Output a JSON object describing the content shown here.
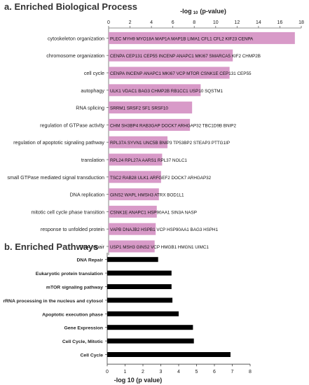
{
  "chart_data": [
    {
      "panel_label": "a.",
      "title": "Enriched Biological Process",
      "type": "bar",
      "orientation": "horizontal",
      "axis_title_main": "-log",
      "axis_title_sub": "10",
      "axis_title_rest": "(p-value)",
      "xlim": [
        0,
        18
      ],
      "xticks": [
        "0",
        "2",
        "4",
        "6",
        "8",
        "10",
        "12",
        "14",
        "16",
        "18"
      ],
      "bar_color": "#d89ac8",
      "categories": [
        "cytoskeleton organization",
        "chromosome organization",
        "cell cycle",
        "autophagy",
        "RNA splicing",
        "regulation of GTPase activity",
        "regulation of apoptotic signaling pathway",
        "translation",
        "small GTPase mediated signal transduction",
        "DNA replication",
        "mitotic cell cycle phase transition",
        "response to unfolded protein",
        "DNA repair"
      ],
      "values": [
        17.4,
        11.6,
        11.3,
        8.6,
        7.8,
        7.6,
        5.5,
        5.0,
        4.9,
        4.7,
        4.5,
        4.4,
        4.3
      ],
      "genes": [
        "PLEC  MYH9  MYO18A  MAP1A  MAP1B  LIMA1  CFL1  CFL2   KIF23   CENPA",
        "CENPA  CEP131  CEP55   INCENP  ANAPC1  MKI67   SMARCA5  KIF2  CHMP2B",
        "CENPA  INCENP   ANAPC1  MKI67   VCP   MTOR  CSNK1E  CEP131  CEP55",
        "ULK1   VDAC1  BAG3  CHMP2B   RB1CC1  USP10   SQSTM1",
        "SRRM1   SRSF2  SF1    SRSF10",
        "CHM  SH3BP4  RAB3GAP   DOCK7   ARHGAP32    TBC1D9B  BNIP2",
        "RPL37A   SYVN1   UNC5B  BNIP3   TP53BP2  STEAP3   PTTG1IP",
        "RPL24  RPL27A  AARS1   RPL37   NOLC1",
        "TSC2   RAB28  ULK1   ARFGEF2    DOCK7   ARHGAP32",
        "GINS2   WAPL   HMSH3  ATRX    BOD1L1",
        "CSNK1E   ANAPC1  HSP90AA1   SIN3A   NASP",
        "VAPB   DNAJB2  HSPB1   VCP  HSP90AA1   BAG3   HSPH1",
        "USP1   MSH3   GINS2   VCP    HMGB1   HMGN1   UIMC1"
      ]
    },
    {
      "panel_label": "b.",
      "title": "Enriched Pathways",
      "type": "bar",
      "orientation": "horizontal",
      "xlabel": "-log 10 (p value)",
      "xlim": [
        0,
        8
      ],
      "xticks": [
        "0",
        "1",
        "2",
        "3",
        "4",
        "5",
        "6",
        "7",
        "8"
      ],
      "bar_color": "#000000",
      "categories": [
        "DNA Repair",
        "Eukaryotic protein translation",
        "mTOR signaling pathway",
        "rRNA processing in the nucleus and cytosol",
        "Apoptotic execution  phase",
        "Gene Expression",
        "Cell Cycle, Mitotic",
        "Cell Cycle"
      ],
      "values": [
        2.85,
        3.6,
        3.6,
        3.65,
        4.0,
        4.8,
        4.85,
        6.9
      ]
    }
  ]
}
